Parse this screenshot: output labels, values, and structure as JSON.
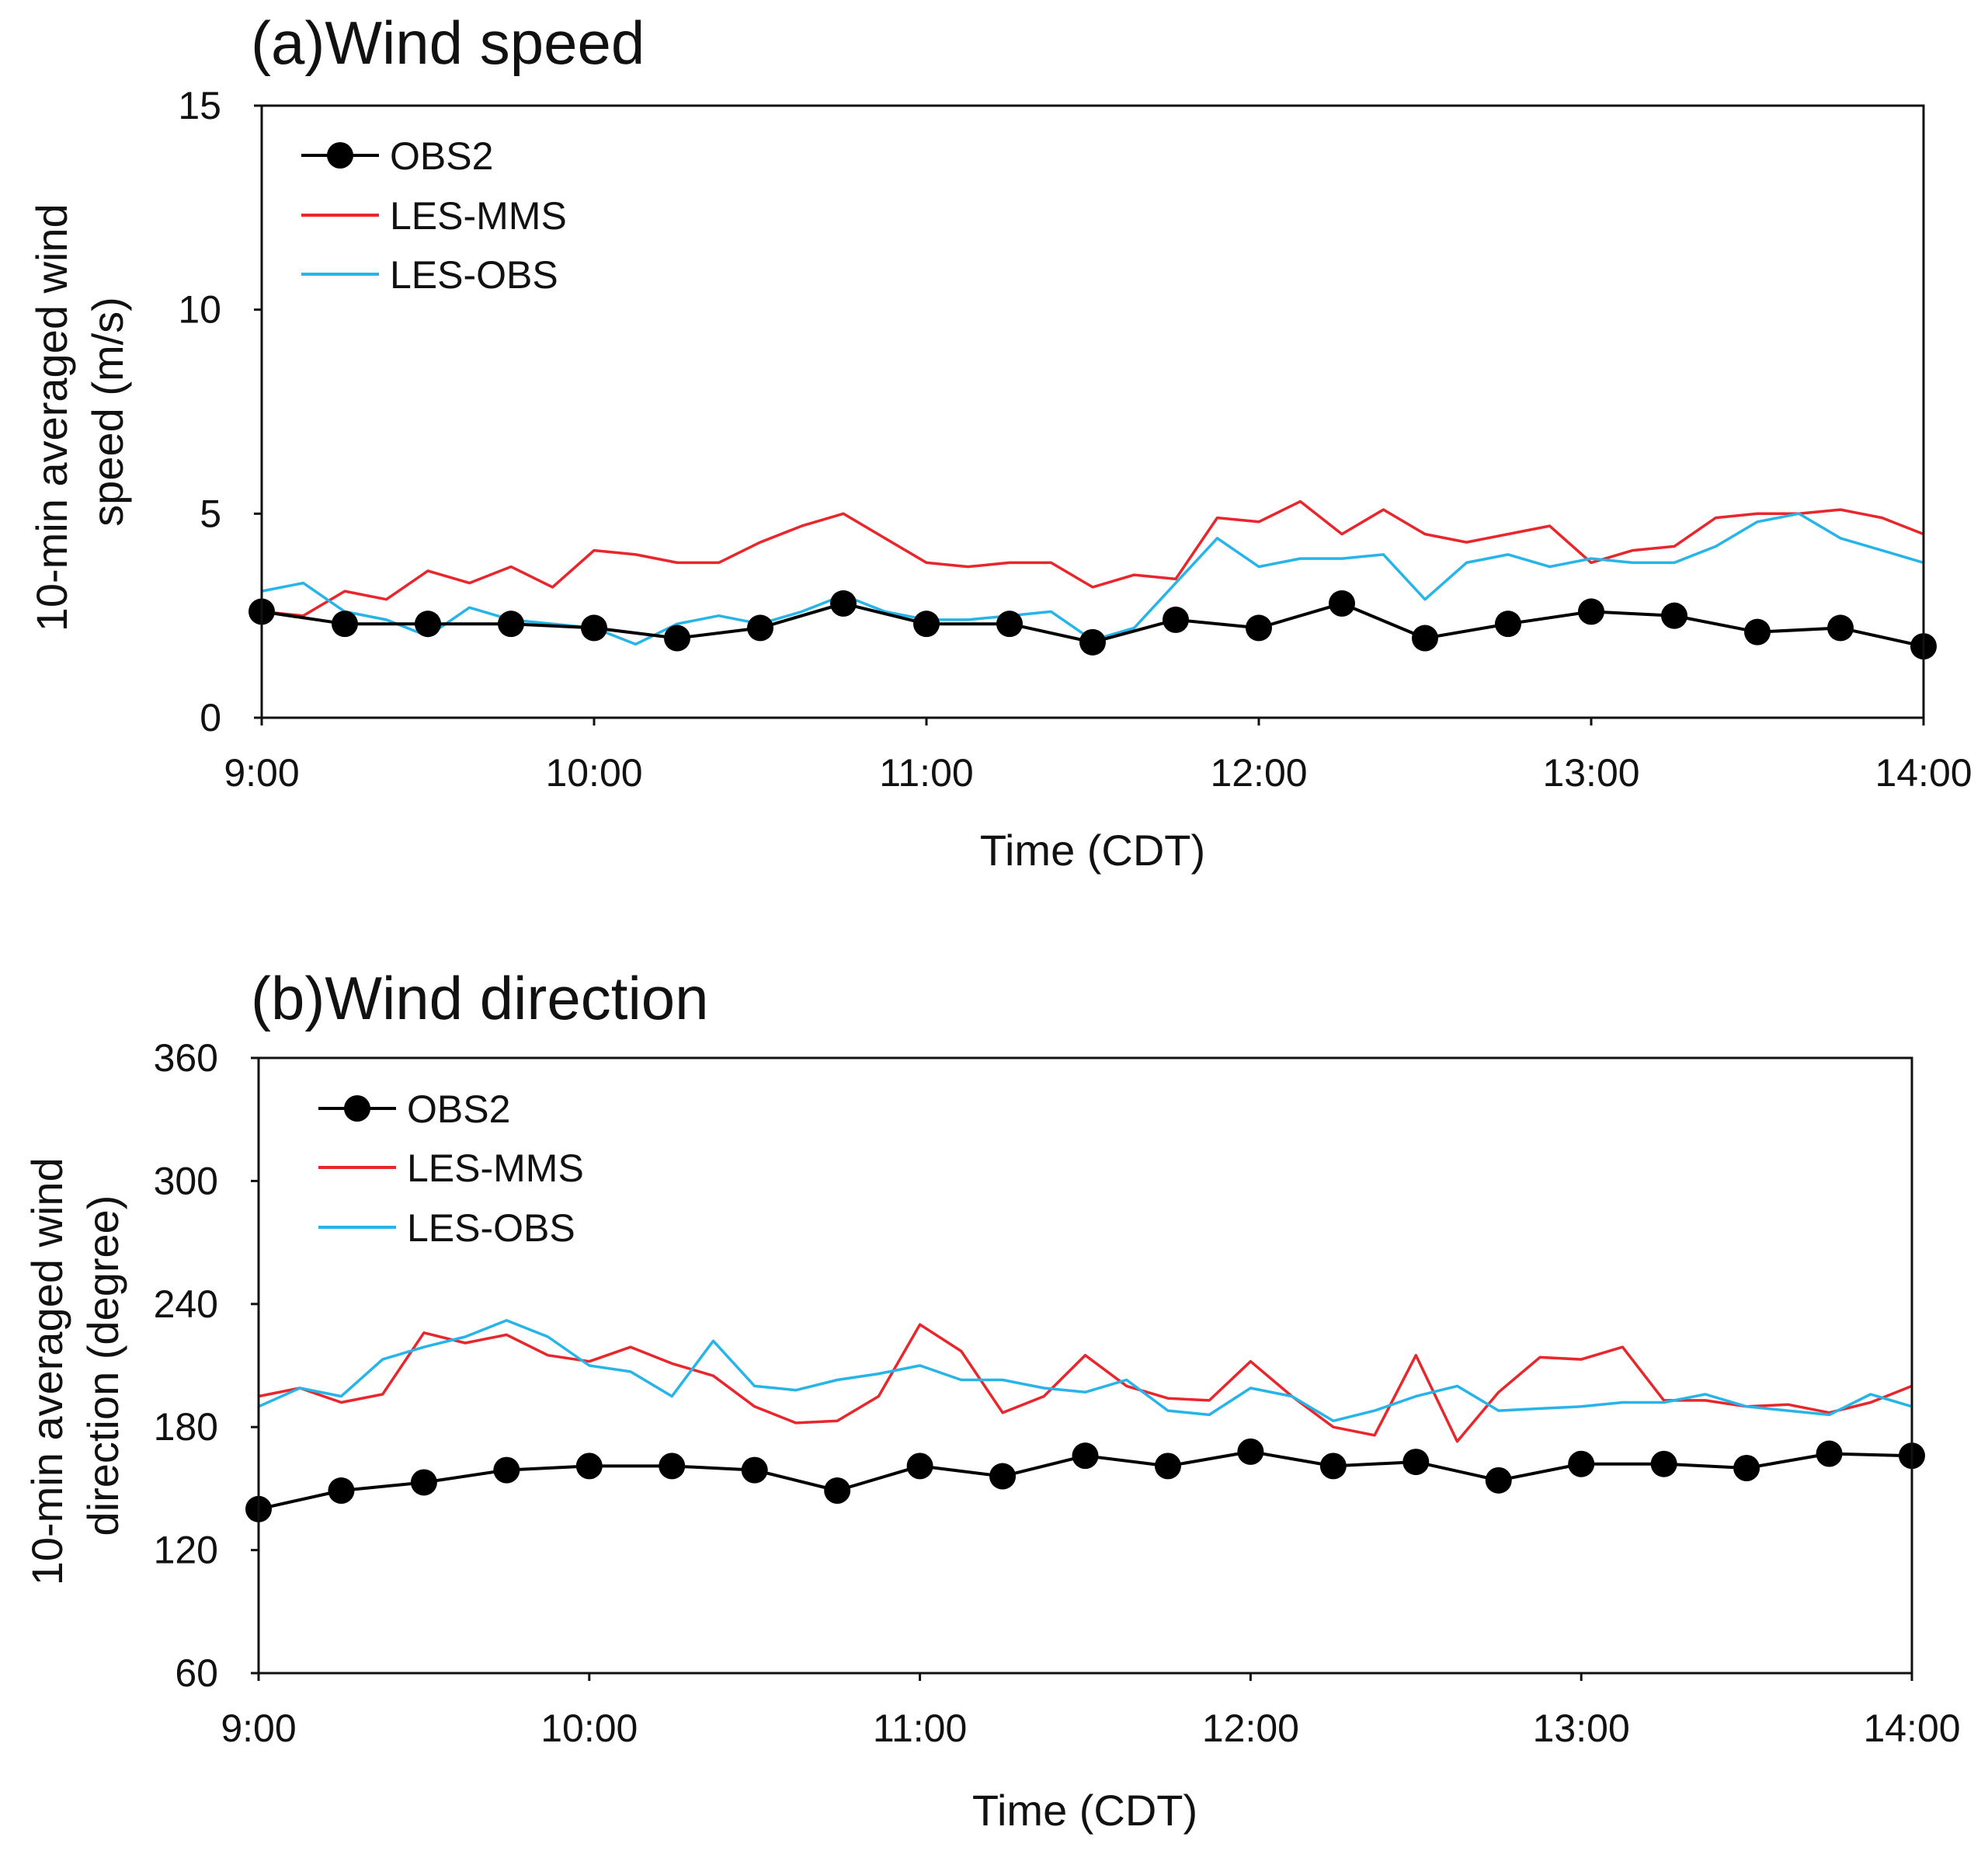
{
  "chart_data": [
    {
      "type": "line",
      "title": "(a)Wind speed",
      "xlabel": "Time (CDT)",
      "ylabel_lines": [
        "10-min averaged wind",
        "speed (m/s)"
      ],
      "xlim": [
        0,
        20
      ],
      "ylim": [
        0,
        15
      ],
      "yticks": [
        0,
        5,
        10,
        15
      ],
      "ytick_labels": [
        "0",
        "5",
        "10",
        "15"
      ],
      "xticks": [
        0,
        4,
        8,
        12,
        16,
        20
      ],
      "xtick_labels": [
        "9:00",
        "10:00",
        "11:00",
        "12:00",
        "13:00",
        "14:00"
      ],
      "x_unit": "15-min intervals after 9:00",
      "legend": [
        "OBS2",
        "LES-MMS",
        "LES-OBS"
      ],
      "series": [
        {
          "name": "OBS2",
          "color": "#000000",
          "marker": "circle",
          "x": [
            0,
            1,
            2,
            3,
            4,
            5,
            6,
            7,
            8,
            9,
            10,
            11,
            12,
            13,
            14,
            15,
            16,
            17,
            18,
            19,
            20
          ],
          "values": [
            2.6,
            2.3,
            2.3,
            2.3,
            2.2,
            1.95,
            2.2,
            2.8,
            2.3,
            2.3,
            1.85,
            2.4,
            2.2,
            2.8,
            1.95,
            2.3,
            2.6,
            2.5,
            2.1,
            2.2,
            1.75
          ]
        },
        {
          "name": "LES-MMS",
          "color": "#e8262b",
          "x": [
            0,
            0.5,
            1,
            1.5,
            2,
            2.5,
            3,
            3.5,
            4,
            4.5,
            5,
            5.5,
            6,
            6.5,
            7,
            7.5,
            8,
            8.5,
            9,
            9.5,
            10,
            10.5,
            11,
            11.5,
            12,
            12.5,
            13,
            13.5,
            14,
            14.5,
            15,
            15.5,
            16,
            16.5,
            17,
            17.5,
            18,
            18.5,
            19,
            19.5,
            20
          ],
          "values": [
            2.6,
            2.5,
            3.1,
            2.9,
            3.6,
            3.3,
            3.7,
            3.2,
            4.1,
            4.0,
            3.8,
            3.8,
            4.3,
            4.7,
            5.0,
            4.4,
            3.8,
            3.7,
            3.8,
            3.8,
            3.2,
            3.5,
            3.4,
            4.9,
            4.8,
            5.3,
            4.5,
            5.1,
            4.5,
            4.3,
            4.5,
            4.7,
            3.8,
            4.1,
            4.2,
            4.9,
            5.0,
            5.0,
            5.1,
            4.9,
            4.5
          ]
        },
        {
          "name": "LES-OBS",
          "color": "#27b4e8",
          "x": [
            0,
            0.5,
            1,
            1.5,
            2,
            2.5,
            3,
            3.5,
            4,
            4.5,
            5,
            5.5,
            6,
            6.5,
            7,
            7.5,
            8,
            8.5,
            9,
            9.5,
            10,
            10.5,
            11,
            11.5,
            12,
            12.5,
            13,
            13.5,
            14,
            14.5,
            15,
            15.5,
            16,
            16.5,
            17,
            17.5,
            18,
            18.5,
            19,
            19.5,
            20
          ],
          "values": [
            3.1,
            3.3,
            2.6,
            2.4,
            2.0,
            2.7,
            2.4,
            2.3,
            2.2,
            1.8,
            2.3,
            2.5,
            2.3,
            2.6,
            3.0,
            2.6,
            2.4,
            2.4,
            2.5,
            2.6,
            1.9,
            2.2,
            3.3,
            4.4,
            3.7,
            3.9,
            3.9,
            4.0,
            2.9,
            3.8,
            4.0,
            3.7,
            3.9,
            3.8,
            3.8,
            4.2,
            4.8,
            5.0,
            4.4,
            4.1,
            3.8
          ]
        }
      ]
    },
    {
      "type": "line",
      "title": "(b)Wind direction",
      "xlabel": "Time (CDT)",
      "ylabel_lines": [
        "10-min averaged wind",
        "direction (degree)"
      ],
      "xlim": [
        0,
        20
      ],
      "ylim": [
        60,
        360
      ],
      "yticks": [
        60,
        120,
        180,
        240,
        300,
        360
      ],
      "ytick_labels": [
        "60",
        "120",
        "180",
        "240",
        "300",
        "360"
      ],
      "xticks": [
        0,
        4,
        8,
        12,
        16,
        20
      ],
      "xtick_labels": [
        "9:00",
        "10:00",
        "11:00",
        "12:00",
        "13:00",
        "14:00"
      ],
      "x_unit": "15-min intervals after 9:00",
      "legend": [
        "OBS2",
        "LES-MMS",
        "LES-OBS"
      ],
      "series": [
        {
          "name": "OBS2",
          "color": "#000000",
          "marker": "circle",
          "x": [
            0,
            1,
            2,
            3,
            4,
            5,
            6,
            7,
            8,
            9,
            10,
            11,
            12,
            13,
            14,
            15,
            16,
            17,
            18,
            19,
            20
          ],
          "values": [
            140,
            149,
            153,
            159,
            161,
            161,
            159,
            149,
            161,
            156,
            166,
            161,
            168,
            161,
            163,
            154,
            162,
            162,
            160,
            167,
            166
          ]
        },
        {
          "name": "LES-MMS",
          "color": "#e8262b",
          "x": [
            0,
            0.5,
            1,
            1.5,
            2,
            2.5,
            3,
            3.5,
            4,
            4.5,
            5,
            5.5,
            6,
            6.5,
            7,
            7.5,
            8,
            8.5,
            9,
            9.5,
            10,
            10.5,
            11,
            11.5,
            12,
            12.5,
            13,
            13.5,
            14,
            14.5,
            15,
            15.5,
            16,
            16.5,
            17,
            17.5,
            18,
            18.5,
            19,
            19.5,
            20
          ],
          "values": [
            195,
            199,
            192,
            196,
            226,
            221,
            225,
            215,
            212,
            219,
            211,
            205,
            190,
            182,
            183,
            195,
            230,
            217,
            187,
            195,
            215,
            200,
            194,
            193,
            212,
            195,
            180,
            176,
            215,
            173,
            197,
            214,
            213,
            219,
            193,
            193,
            190,
            191,
            187,
            192,
            200
          ]
        },
        {
          "name": "LES-OBS",
          "color": "#27b4e8",
          "x": [
            0,
            0.5,
            1,
            1.5,
            2,
            2.5,
            3,
            3.5,
            4,
            4.5,
            5,
            5.5,
            6,
            6.5,
            7,
            7.5,
            8,
            8.5,
            9,
            9.5,
            10,
            10.5,
            11,
            11.5,
            12,
            12.5,
            13,
            13.5,
            14,
            14.5,
            15,
            15.5,
            16,
            16.5,
            17,
            17.5,
            18,
            18.5,
            19,
            19.5,
            20
          ],
          "values": [
            190,
            199,
            195,
            213,
            219,
            224,
            232,
            224,
            210,
            207,
            195,
            222,
            200,
            198,
            203,
            206,
            210,
            203,
            203,
            199,
            197,
            203,
            188,
            186,
            199,
            195,
            183,
            188,
            195,
            200,
            188,
            189,
            190,
            192,
            192,
            196,
            190,
            188,
            186,
            196,
            190
          ]
        }
      ]
    }
  ]
}
